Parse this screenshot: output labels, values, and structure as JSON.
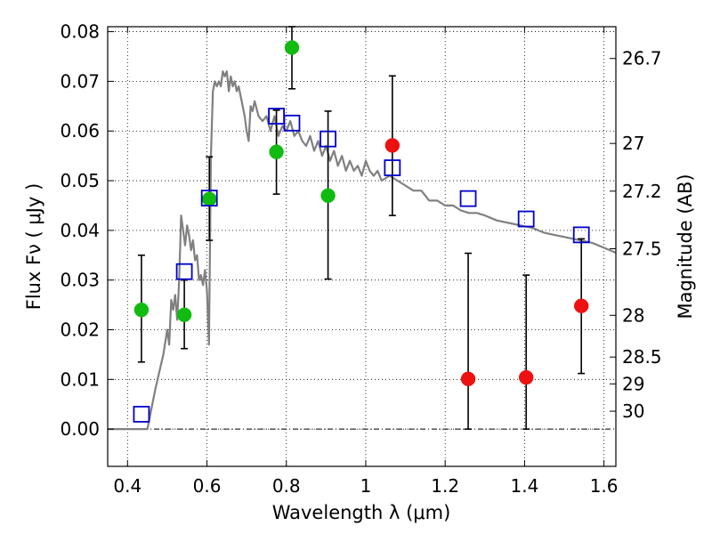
{
  "chart_data": {
    "type": "scatter",
    "xlabel": "Wavelength  λ (μm)",
    "ylabel": "Flux  Fν  ( μJy )",
    "y2label": "Magnitude (AB)",
    "xlim": [
      0.35,
      1.63
    ],
    "ylim": [
      -0.0075,
      0.081
    ],
    "x_ticks": [
      0.4,
      0.6,
      0.8,
      1.0,
      1.2,
      1.4,
      1.6
    ],
    "x_tick_labels": [
      "0.4",
      "0.6",
      "0.8",
      "1",
      "1.2",
      "1.4",
      "1.6"
    ],
    "y_ticks": [
      0.0,
      0.01,
      0.02,
      0.03,
      0.04,
      0.05,
      0.06,
      0.07,
      0.08
    ],
    "y_tick_labels": [
      "0.00",
      "0.01",
      "0.02",
      "0.03",
      "0.04",
      "0.05",
      "0.06",
      "0.07",
      "0.08"
    ],
    "mag_ticks": [
      {
        "label": "26.7",
        "flux": 0.0746
      },
      {
        "label": "27",
        "flux": 0.0575
      },
      {
        "label": "27.2",
        "flux": 0.0479
      },
      {
        "label": "27.5",
        "flux": 0.0363
      },
      {
        "label": "28",
        "flux": 0.0229
      },
      {
        "label": "28.5",
        "flux": 0.0145
      },
      {
        "label": "29",
        "flux": 0.0091
      },
      {
        "label": "30",
        "flux": 0.0036
      }
    ],
    "grid": true,
    "zero_line": 0.0,
    "colors": {
      "model": "#808080",
      "green": "#11bb11",
      "red": "#ee1111",
      "square": "#0000cc",
      "errorbar": "#000000"
    },
    "series": [
      {
        "name": "model spectrum",
        "kind": "line",
        "x": [
          0.35,
          0.45,
          0.47,
          0.49,
          0.5,
          0.505,
          0.51,
          0.515,
          0.52,
          0.525,
          0.53,
          0.535,
          0.54,
          0.545,
          0.55,
          0.555,
          0.56,
          0.565,
          0.57,
          0.575,
          0.58,
          0.585,
          0.59,
          0.595,
          0.6,
          0.605,
          0.61,
          0.615,
          0.62,
          0.625,
          0.63,
          0.635,
          0.64,
          0.645,
          0.65,
          0.655,
          0.66,
          0.665,
          0.67,
          0.675,
          0.68,
          0.685,
          0.69,
          0.695,
          0.7,
          0.705,
          0.71,
          0.715,
          0.72,
          0.73,
          0.74,
          0.75,
          0.76,
          0.77,
          0.78,
          0.79,
          0.8,
          0.81,
          0.82,
          0.83,
          0.84,
          0.85,
          0.86,
          0.87,
          0.88,
          0.89,
          0.9,
          0.91,
          0.92,
          0.93,
          0.94,
          0.95,
          0.96,
          0.97,
          0.98,
          0.99,
          1.0,
          1.01,
          1.02,
          1.03,
          1.04,
          1.06,
          1.08,
          1.1,
          1.12,
          1.14,
          1.16,
          1.18,
          1.2,
          1.22,
          1.24,
          1.26,
          1.28,
          1.3,
          1.33,
          1.36,
          1.39,
          1.42,
          1.45,
          1.48,
          1.51,
          1.54,
          1.57,
          1.6,
          1.63
        ],
        "y": [
          0.0,
          0.0,
          0.008,
          0.015,
          0.02,
          0.017,
          0.026,
          0.024,
          0.027,
          0.022,
          0.03,
          0.043,
          0.04,
          0.037,
          0.041,
          0.039,
          0.036,
          0.038,
          0.034,
          0.035,
          0.03,
          0.031,
          0.029,
          0.032,
          0.028,
          0.017,
          0.055,
          0.068,
          0.07,
          0.069,
          0.07,
          0.069,
          0.072,
          0.071,
          0.072,
          0.068,
          0.071,
          0.069,
          0.07,
          0.068,
          0.069,
          0.067,
          0.065,
          0.063,
          0.06,
          0.058,
          0.065,
          0.064,
          0.066,
          0.063,
          0.062,
          0.063,
          0.06,
          0.063,
          0.059,
          0.061,
          0.06,
          0.062,
          0.059,
          0.06,
          0.058,
          0.057,
          0.059,
          0.056,
          0.058,
          0.055,
          0.057,
          0.054,
          0.056,
          0.053,
          0.055,
          0.052,
          0.054,
          0.052,
          0.053,
          0.051,
          0.054,
          0.052,
          0.051,
          0.052,
          0.05,
          0.051,
          0.05,
          0.049,
          0.048,
          0.048,
          0.046,
          0.046,
          0.045,
          0.045,
          0.044,
          0.0435,
          0.0435,
          0.043,
          0.042,
          0.0415,
          0.041,
          0.0405,
          0.0395,
          0.039,
          0.0385,
          0.038,
          0.0375,
          0.0365,
          0.0355
        ]
      },
      {
        "name": "photometry (green)",
        "kind": "points",
        "color_key": "green",
        "x": [
          0.435,
          0.543,
          0.606,
          0.775,
          0.814,
          0.905
        ],
        "y": [
          0.024,
          0.023,
          0.0463,
          0.0558,
          0.0768,
          0.047
        ],
        "err_low": [
          0.0135,
          0.0162,
          0.038,
          0.0473,
          0.0685,
          0.0302
        ],
        "err_high": [
          0.035,
          0.03,
          0.0548,
          0.0642,
          0.081,
          0.064
        ]
      },
      {
        "name": "photometry (red)",
        "kind": "points",
        "color_key": "red",
        "x": [
          1.067,
          1.258,
          1.404,
          1.543
        ],
        "y": [
          0.0571,
          0.0101,
          0.0104,
          0.0248
        ],
        "err_low": [
          0.043,
          0.0,
          0.0,
          0.0112
        ],
        "err_high": [
          0.0711,
          0.0354,
          0.031,
          0.0383
        ]
      },
      {
        "name": "synthetic model photometry",
        "kind": "squares",
        "color_key": "square",
        "x": [
          0.435,
          0.543,
          0.606,
          0.775,
          0.814,
          0.905,
          1.067,
          1.258,
          1.404,
          1.543
        ],
        "y": [
          0.003,
          0.0317,
          0.0465,
          0.063,
          0.0616,
          0.0584,
          0.0526,
          0.0464,
          0.0423,
          0.0391
        ]
      }
    ]
  }
}
